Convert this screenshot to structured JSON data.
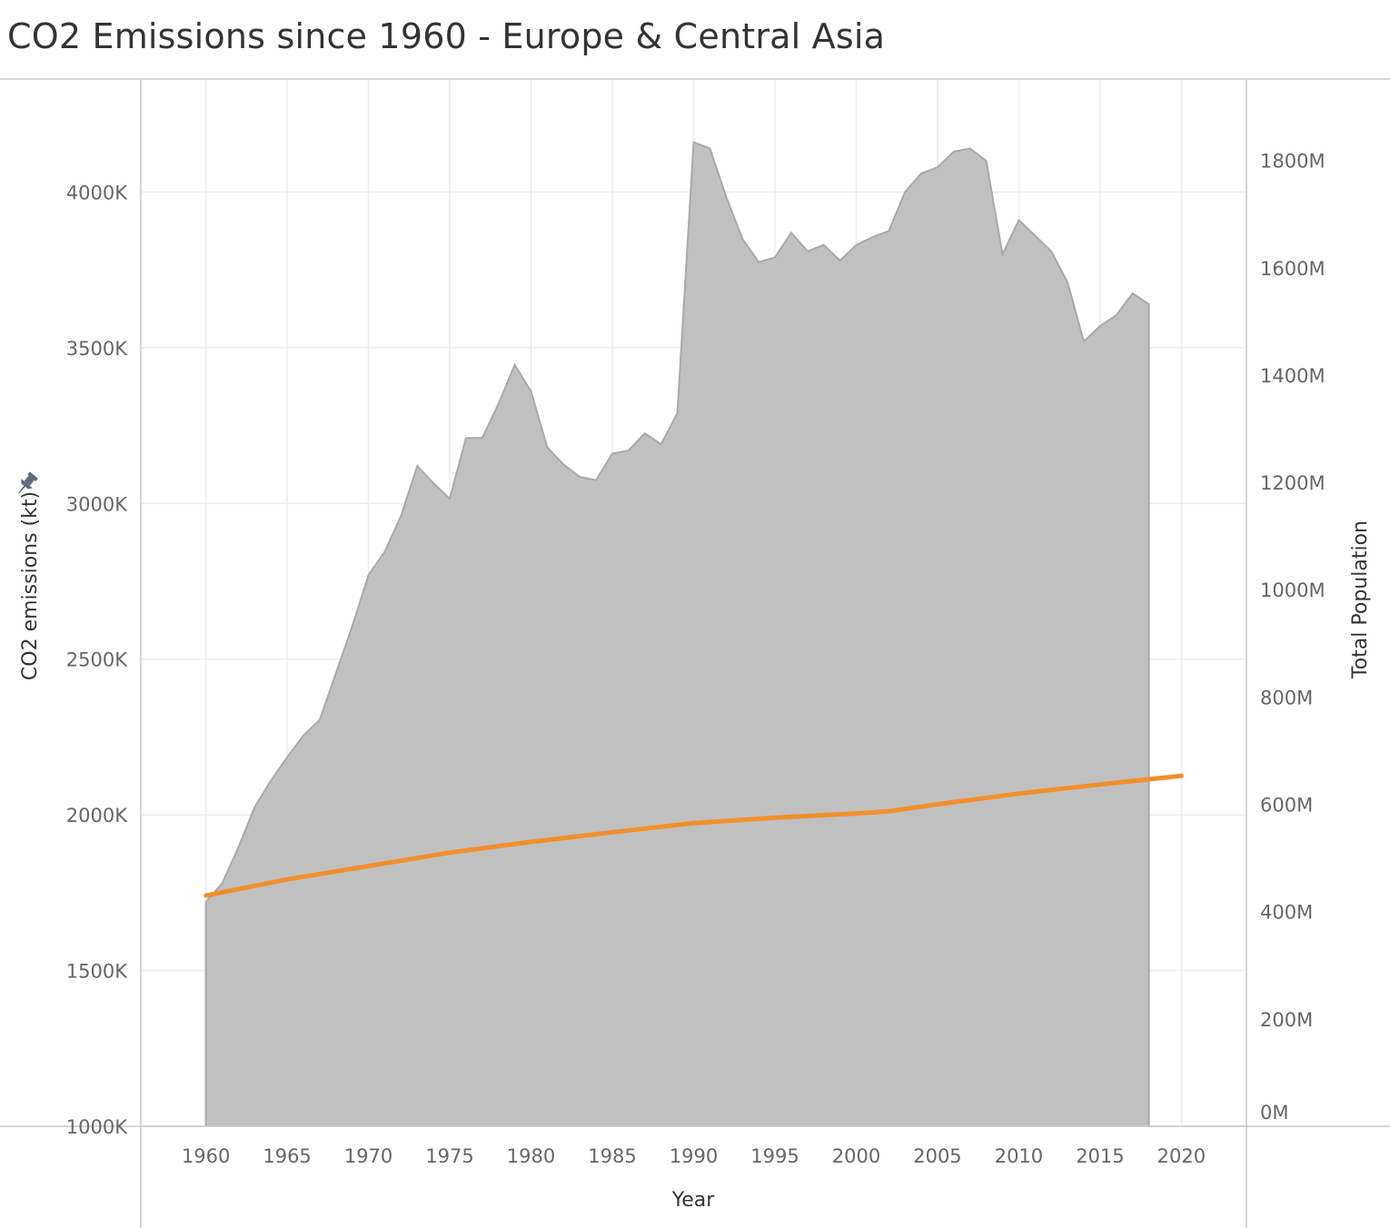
{
  "title": "CO2 Emissions since 1960 - Europe & Central Asia",
  "colors": {
    "area_fill": "#c0c0c0",
    "area_stroke": "#a9a9a9",
    "line": "#f28e2b",
    "grid": "#ececec",
    "frame": "#c8c8c8",
    "pin": "#5d6d7e"
  },
  "icons": {
    "y_axis_pin": "pin-icon"
  },
  "chart_data": {
    "type": "area",
    "xlabel": "Year",
    "ylabel": "CO2 emissions (kt)",
    "y2label": "Total Population",
    "xlim": [
      1956,
      2024
    ],
    "ylim": [
      1000000,
      4360000
    ],
    "y2lim": [
      0,
      1950000000
    ],
    "x_ticks": [
      1960,
      1965,
      1970,
      1975,
      1980,
      1985,
      1990,
      1995,
      2000,
      2005,
      2010,
      2015,
      2020
    ],
    "x_tick_labels": [
      "1960",
      "1965",
      "1970",
      "1975",
      "1980",
      "1985",
      "1990",
      "1995",
      "2000",
      "2005",
      "2010",
      "2015",
      "2020"
    ],
    "y_ticks": [
      1000000,
      1500000,
      2000000,
      2500000,
      3000000,
      3500000,
      4000000
    ],
    "y_tick_labels": [
      "1000K",
      "1500K",
      "2000K",
      "2500K",
      "3000K",
      "3500K",
      "4000K"
    ],
    "y2_ticks": [
      0,
      200000000,
      400000000,
      600000000,
      800000000,
      1000000000,
      1200000000,
      1400000000,
      1600000000,
      1800000000
    ],
    "y2_tick_labels": [
      "0M",
      "200M",
      "400M",
      "600M",
      "800M",
      "1000M",
      "1200M",
      "1400M",
      "1600M",
      "1800M"
    ],
    "grid": true,
    "series": [
      {
        "name": "CO2 emissions (kt)",
        "type": "area",
        "axis": "left",
        "x": [
          1960,
          1961,
          1962,
          1963,
          1964,
          1965,
          1966,
          1967,
          1968,
          1969,
          1970,
          1971,
          1972,
          1973,
          1974,
          1975,
          1976,
          1977,
          1978,
          1979,
          1980,
          1981,
          1982,
          1983,
          1984,
          1985,
          1986,
          1987,
          1988,
          1989,
          1990,
          1991,
          1992,
          1993,
          1994,
          1995,
          1996,
          1997,
          1998,
          1999,
          2000,
          2001,
          2002,
          2003,
          2004,
          2005,
          2006,
          2007,
          2008,
          2009,
          2010,
          2011,
          2012,
          2013,
          2014,
          2015,
          2016,
          2017,
          2018
        ],
        "y": [
          1720000,
          1780000,
          1895000,
          2025000,
          2110000,
          2185000,
          2255000,
          2305000,
          2455000,
          2605000,
          2770000,
          2845000,
          2960000,
          3120000,
          3065000,
          3015000,
          3210000,
          3210000,
          3320000,
          3445000,
          3360000,
          3180000,
          3125000,
          3085000,
          3075000,
          3160000,
          3170000,
          3225000,
          3190000,
          3290000,
          4160000,
          4140000,
          3985000,
          3850000,
          3775000,
          3790000,
          3870000,
          3810000,
          3830000,
          3780000,
          3830000,
          3855000,
          3875000,
          4000000,
          4060000,
          4080000,
          4130000,
          4140000,
          4100000,
          3800000,
          3910000,
          3860000,
          3810000,
          3710000,
          3520000,
          3570000,
          3605000,
          3675000,
          3640000
        ]
      },
      {
        "name": "Total Population",
        "type": "line",
        "axis": "right",
        "x": [
          1960,
          1965,
          1970,
          1975,
          1980,
          1985,
          1990,
          1995,
          2000,
          2002,
          2005,
          2010,
          2015,
          2020
        ],
        "y": [
          430000000,
          460000000,
          485000000,
          510000000,
          530000000,
          548000000,
          565000000,
          575000000,
          583000000,
          587000000,
          600000000,
          620000000,
          637000000,
          653000000
        ]
      }
    ]
  }
}
